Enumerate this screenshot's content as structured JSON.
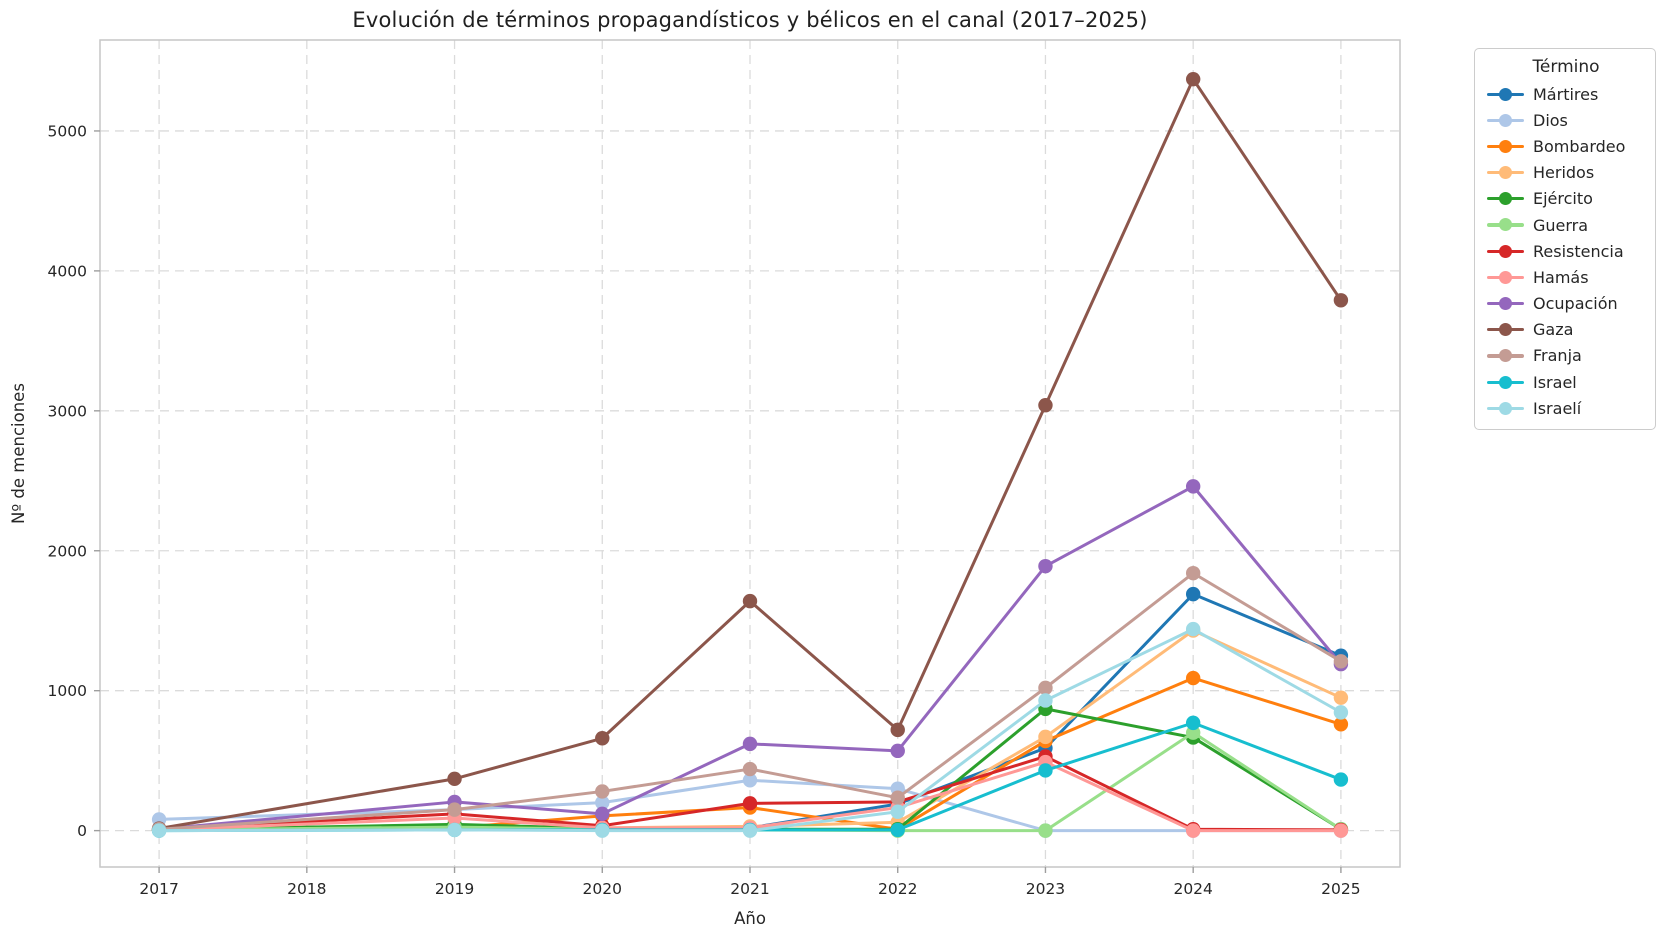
{
  "figure": {
    "background": "#ffffff",
    "text_color": "#262626",
    "spine_color": "#c6c6c6",
    "tick_color": "#9e9e9e"
  },
  "chart_data": {
    "type": "line",
    "title": "Evolución de términos propagandísticos y bélicos en el canal (2017–2025)",
    "xlabel": "Año",
    "ylabel": "Nº de menciones",
    "legend_title": "Término",
    "legend_position": "outside upper right",
    "grid": {
      "visible": true,
      "linestyle": "dashed",
      "color": "#dbdbdb"
    },
    "x_ticks": [
      2017,
      2018,
      2019,
      2020,
      2021,
      2022,
      2023,
      2024,
      2025
    ],
    "y_ticks": [
      0,
      1000,
      2000,
      3000,
      4000,
      5000
    ],
    "xlim": [
      2016.6,
      2025.4
    ],
    "ylim": [
      -260,
      5650
    ],
    "x": [
      2017,
      2019,
      2020,
      2021,
      2022,
      2023,
      2024,
      2025
    ],
    "series": [
      {
        "name": "Mártires",
        "color": "#1f77b4",
        "values": [
          5,
          10,
          15,
          20,
          190,
          590,
          1690,
          1250
        ]
      },
      {
        "name": "Dios",
        "color": "#aec7e8",
        "values": [
          80,
          150,
          200,
          360,
          300,
          0,
          0,
          0
        ]
      },
      {
        "name": "Bombardeo",
        "color": "#ff7f0e",
        "values": [
          5,
          20,
          105,
          165,
          10,
          640,
          1090,
          760
        ]
      },
      {
        "name": "Heridos",
        "color": "#ffbb78",
        "values": [
          5,
          15,
          20,
          30,
          60,
          670,
          1430,
          950
        ]
      },
      {
        "name": "Ejército",
        "color": "#2ca02c",
        "values": [
          5,
          45,
          15,
          10,
          10,
          870,
          665,
          10
        ]
      },
      {
        "name": "Guerra",
        "color": "#98df8a",
        "values": [
          5,
          25,
          10,
          5,
          0,
          0,
          700,
          10
        ]
      },
      {
        "name": "Resistencia",
        "color": "#d62728",
        "values": [
          10,
          120,
          35,
          195,
          205,
          530,
          10,
          5
        ]
      },
      {
        "name": "Hamás",
        "color": "#ff9896",
        "values": [
          5,
          90,
          20,
          20,
          165,
          490,
          0,
          0
        ]
      },
      {
        "name": "Ocupación",
        "color": "#9467bd",
        "values": [
          10,
          205,
          120,
          620,
          570,
          1890,
          2460,
          1190
        ]
      },
      {
        "name": "Gaza",
        "color": "#8c564b",
        "values": [
          15,
          370,
          660,
          1640,
          720,
          3040,
          5370,
          3790
        ]
      },
      {
        "name": "Franja",
        "color": "#c49c94",
        "values": [
          10,
          150,
          280,
          440,
          235,
          1020,
          1840,
          1210
        ]
      },
      {
        "name": "Israel",
        "color": "#17becf",
        "values": [
          0,
          5,
          5,
          5,
          5,
          430,
          770,
          365
        ]
      },
      {
        "name": "Israelí",
        "color": "#9edae5",
        "values": [
          0,
          5,
          0,
          0,
          135,
          930,
          1440,
          845
        ]
      }
    ]
  }
}
